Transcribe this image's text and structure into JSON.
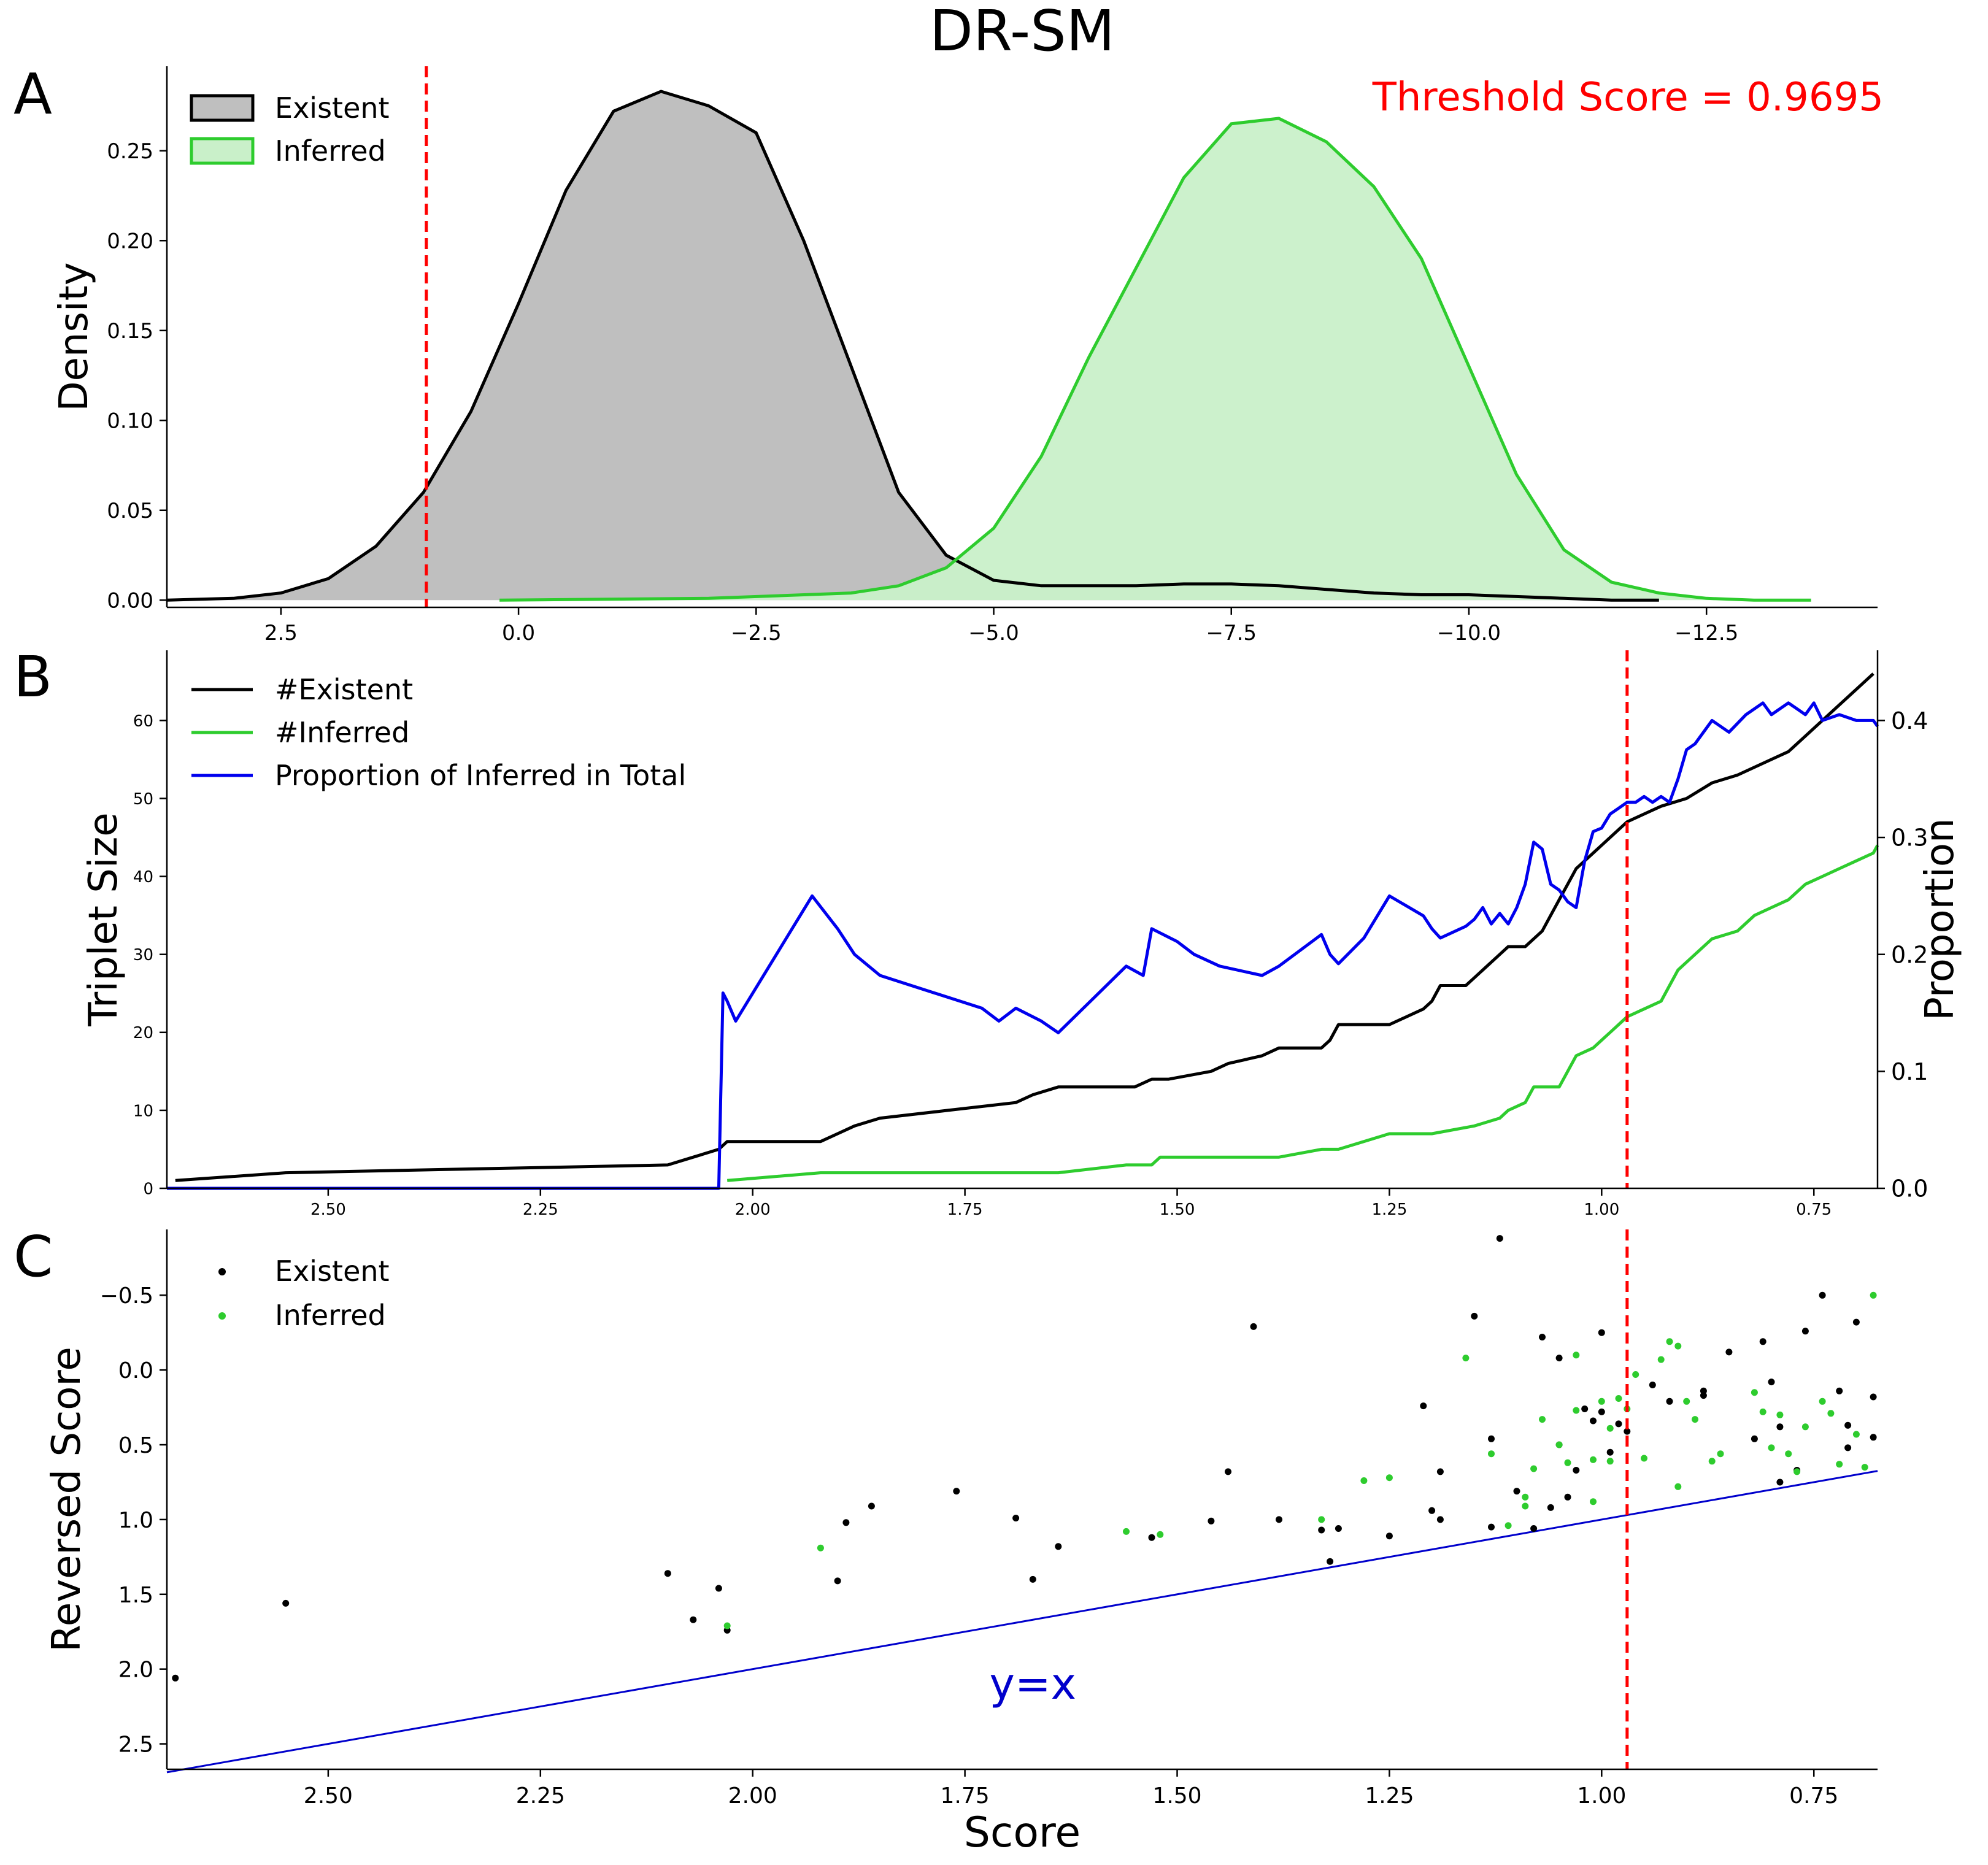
{
  "figure_title": "DR-SM",
  "panel_letters": [
    "A",
    "B",
    "C"
  ],
  "colors": {
    "existent": "#000000",
    "existent_fill": "#bfbfbf",
    "inferred": "#2ecc2e",
    "inferred_fill": "#c9f0c9",
    "proportion": "#0000ee",
    "threshold": "#ff0000",
    "identity": "#0000cc"
  },
  "chart_data": [
    {
      "type": "area",
      "panel": "A",
      "title": "Threshold Score = 0.9695",
      "xlabel": "",
      "ylabel": "Density",
      "xlim": [
        3.7,
        -14.3
      ],
      "ylim": [
        -0.004,
        0.297
      ],
      "x_reversed": true,
      "x_ticks": [
        2.5,
        0.0,
        -2.5,
        -5.0,
        -7.5,
        -10.0,
        -12.5
      ],
      "x_tick_labels": [
        "2.5",
        "0.0",
        "−2.5",
        "−5.0",
        "−7.5",
        "−10.0",
        "−12.5"
      ],
      "y_ticks": [
        0.0,
        0.05,
        0.1,
        0.15,
        0.2,
        0.25
      ],
      "y_tick_labels": [
        "0.00",
        "0.05",
        "0.10",
        "0.15",
        "0.20",
        "0.25"
      ],
      "threshold_x": 0.97,
      "legend": "top-left",
      "grid": false,
      "series": [
        {
          "name": "Existent",
          "x": [
            3.7,
            3.0,
            2.5,
            2.0,
            1.5,
            1.0,
            0.5,
            0.0,
            -0.5,
            -1.0,
            -1.5,
            -2.0,
            -2.5,
            -3.0,
            -3.5,
            -4.0,
            -4.5,
            -5.0,
            -5.5,
            -6.0,
            -6.5,
            -7.0,
            -7.5,
            -8.0,
            -8.5,
            -9.0,
            -9.5,
            -10.0,
            -10.5,
            -11.0,
            -11.5,
            -12.0
          ],
          "y": [
            0.0,
            0.001,
            0.004,
            0.012,
            0.03,
            0.06,
            0.105,
            0.165,
            0.228,
            0.272,
            0.283,
            0.275,
            0.26,
            0.2,
            0.13,
            0.06,
            0.025,
            0.011,
            0.008,
            0.008,
            0.008,
            0.009,
            0.009,
            0.008,
            0.006,
            0.004,
            0.003,
            0.003,
            0.002,
            0.001,
            0.0,
            0.0
          ]
        },
        {
          "name": "Inferred",
          "x": [
            0.2,
            -2.0,
            -3.5,
            -4.0,
            -4.5,
            -5.0,
            -5.5,
            -6.0,
            -6.5,
            -7.0,
            -7.5,
            -8.0,
            -8.5,
            -9.0,
            -9.5,
            -10.0,
            -10.5,
            -11.0,
            -11.5,
            -12.0,
            -12.5,
            -13.0,
            -13.6
          ],
          "y": [
            0.0,
            0.001,
            0.004,
            0.008,
            0.018,
            0.04,
            0.08,
            0.135,
            0.185,
            0.235,
            0.265,
            0.268,
            0.255,
            0.23,
            0.19,
            0.13,
            0.07,
            0.028,
            0.01,
            0.004,
            0.001,
            0.0,
            0.0
          ]
        }
      ]
    },
    {
      "type": "line",
      "panel": "B",
      "xlabel": "",
      "ylabel": "Triplet Size",
      "y2label": "Proportion",
      "xlim": [
        2.69,
        0.675
      ],
      "ylim": [
        0,
        69
      ],
      "y2lim": [
        0,
        0.46
      ],
      "x_reversed": true,
      "x_ticks": [
        2.5,
        2.25,
        2.0,
        1.75,
        1.5,
        1.25,
        1.0,
        0.75
      ],
      "x_tick_labels": [
        "2.50",
        "2.25",
        "2.00",
        "1.75",
        "1.50",
        "1.25",
        "1.00",
        "0.75"
      ],
      "y_ticks": [
        0,
        10,
        20,
        30,
        40,
        50,
        60
      ],
      "y_tick_labels": [
        "0",
        "10",
        "20",
        "30",
        "40",
        "50",
        "60"
      ],
      "y2_ticks": [
        0.0,
        0.1,
        0.2,
        0.3,
        0.4
      ],
      "y2_tick_labels": [
        "0.0",
        "0.1",
        "0.2",
        "0.3",
        "0.4"
      ],
      "threshold_x": 0.97,
      "legend": "top-left",
      "grid": false,
      "series": [
        {
          "name": "#Existent",
          "axis": "left",
          "x": [
            2.68,
            2.55,
            2.1,
            2.07,
            2.04,
            2.03,
            1.92,
            1.9,
            1.88,
            1.85,
            1.77,
            1.69,
            1.67,
            1.64,
            1.55,
            1.53,
            1.51,
            1.46,
            1.44,
            1.4,
            1.38,
            1.33,
            1.32,
            1.31,
            1.25,
            1.21,
            1.2,
            1.19,
            1.16,
            1.15,
            1.14,
            1.13,
            1.12,
            1.11,
            1.09,
            1.07,
            1.06,
            1.05,
            1.04,
            1.03,
            1.02,
            1.01,
            1.0,
            0.99,
            0.98,
            0.97,
            0.95,
            0.93,
            0.9,
            0.87,
            0.84,
            0.8,
            0.78,
            0.76,
            0.74,
            0.72,
            0.7,
            0.68
          ],
          "y": [
            1,
            2,
            3,
            4,
            5,
            6,
            6,
            7,
            8,
            9,
            10,
            11,
            12,
            13,
            13,
            14,
            14,
            15,
            16,
            17,
            18,
            18,
            19,
            21,
            21,
            23,
            24,
            26,
            26,
            27,
            28,
            29,
            30,
            31,
            31,
            33,
            35,
            37,
            39,
            41,
            42,
            43,
            44,
            45,
            46,
            47,
            48,
            49,
            50,
            52,
            53,
            55,
            56,
            58,
            60,
            62,
            64,
            66
          ]
        },
        {
          "name": "#Inferred",
          "axis": "left",
          "x": [
            2.03,
            1.92,
            1.64,
            1.56,
            1.53,
            1.52,
            1.38,
            1.33,
            1.31,
            1.25,
            1.2,
            1.15,
            1.12,
            1.11,
            1.09,
            1.08,
            1.05,
            1.04,
            1.03,
            1.01,
            1.0,
            0.99,
            0.98,
            0.97,
            0.95,
            0.93,
            0.92,
            0.91,
            0.89,
            0.87,
            0.84,
            0.82,
            0.8,
            0.78,
            0.76,
            0.74,
            0.72,
            0.7,
            0.68,
            0.675
          ],
          "y": [
            1,
            2,
            2,
            3,
            3,
            4,
            4,
            5,
            5,
            7,
            7,
            8,
            9,
            10,
            11,
            13,
            13,
            15,
            17,
            18,
            19,
            20,
            21,
            22,
            23,
            24,
            26,
            28,
            30,
            32,
            33,
            35,
            36,
            37,
            39,
            40,
            41,
            42,
            43,
            44
          ]
        },
        {
          "name": "Proportion of Inferred in Total",
          "axis": "right",
          "x": [
            2.69,
            2.04,
            2.035,
            2.03,
            2.02,
            1.93,
            1.9,
            1.88,
            1.85,
            1.73,
            1.71,
            1.69,
            1.66,
            1.64,
            1.56,
            1.54,
            1.53,
            1.5,
            1.48,
            1.45,
            1.4,
            1.38,
            1.33,
            1.32,
            1.31,
            1.28,
            1.25,
            1.21,
            1.2,
            1.19,
            1.16,
            1.15,
            1.14,
            1.13,
            1.12,
            1.11,
            1.1,
            1.09,
            1.08,
            1.07,
            1.06,
            1.05,
            1.04,
            1.03,
            1.02,
            1.01,
            1.0,
            0.99,
            0.98,
            0.97,
            0.96,
            0.95,
            0.94,
            0.93,
            0.92,
            0.91,
            0.9,
            0.89,
            0.87,
            0.85,
            0.83,
            0.81,
            0.8,
            0.79,
            0.78,
            0.77,
            0.76,
            0.75,
            0.74,
            0.72,
            0.7,
            0.68,
            0.675
          ],
          "y": [
            0.0,
            0.0,
            0.167,
            0.16,
            0.143,
            0.25,
            0.222,
            0.2,
            0.182,
            0.154,
            0.143,
            0.154,
            0.143,
            0.133,
            0.19,
            0.182,
            0.222,
            0.211,
            0.2,
            0.19,
            0.182,
            0.19,
            0.217,
            0.2,
            0.192,
            0.214,
            0.25,
            0.233,
            0.222,
            0.214,
            0.224,
            0.23,
            0.24,
            0.226,
            0.235,
            0.226,
            0.24,
            0.26,
            0.296,
            0.29,
            0.26,
            0.255,
            0.245,
            0.24,
            0.28,
            0.305,
            0.308,
            0.32,
            0.325,
            0.33,
            0.33,
            0.335,
            0.33,
            0.335,
            0.33,
            0.35,
            0.375,
            0.38,
            0.4,
            0.39,
            0.405,
            0.415,
            0.405,
            0.41,
            0.415,
            0.41,
            0.405,
            0.415,
            0.4,
            0.405,
            0.4,
            0.4,
            0.395
          ]
        }
      ]
    },
    {
      "type": "scatter",
      "panel": "C",
      "xlabel": "Score",
      "ylabel": "Reversed Score",
      "xlim": [
        2.69,
        0.675
      ],
      "ylim": [
        2.67,
        -0.94
      ],
      "x_reversed": true,
      "y_reversed": true,
      "x_ticks": [
        2.5,
        2.25,
        2.0,
        1.75,
        1.5,
        1.25,
        1.0,
        0.75
      ],
      "x_tick_labels": [
        "2.50",
        "2.25",
        "2.00",
        "1.75",
        "1.50",
        "1.25",
        "1.00",
        "0.75"
      ],
      "y_ticks": [
        -0.5,
        0.0,
        0.5,
        1.0,
        1.5,
        2.0,
        2.5
      ],
      "y_tick_labels": [
        "−0.5",
        "0.0",
        "0.5",
        "1.0",
        "1.5",
        "2.0",
        "2.5"
      ],
      "threshold_x": 0.97,
      "reference_line": {
        "label": "y=x",
        "x": [
          2.69,
          0.675
        ],
        "y": [
          2.69,
          0.675
        ]
      },
      "annotation_label_at": [
        1.67,
        2.1
      ],
      "legend": "top-left",
      "grid": false,
      "series": [
        {
          "name": "Existent",
          "points": [
            [
              2.68,
              2.06
            ],
            [
              2.55,
              1.56
            ],
            [
              2.1,
              1.36
            ],
            [
              2.07,
              1.67
            ],
            [
              2.04,
              1.46
            ],
            [
              2.03,
              1.74
            ],
            [
              1.9,
              1.41
            ],
            [
              1.89,
              1.02
            ],
            [
              1.86,
              0.91
            ],
            [
              1.76,
              0.81
            ],
            [
              1.69,
              0.99
            ],
            [
              1.67,
              1.4
            ],
            [
              1.64,
              1.18
            ],
            [
              1.53,
              1.12
            ],
            [
              1.46,
              1.01
            ],
            [
              1.44,
              0.68
            ],
            [
              1.41,
              -0.29
            ],
            [
              1.38,
              1.0
            ],
            [
              1.33,
              1.07
            ],
            [
              1.32,
              1.28
            ],
            [
              1.31,
              1.06
            ],
            [
              1.25,
              1.11
            ],
            [
              1.21,
              0.24
            ],
            [
              1.2,
              0.94
            ],
            [
              1.19,
              0.68
            ],
            [
              1.19,
              1.0
            ],
            [
              1.15,
              -0.36
            ],
            [
              1.13,
              0.46
            ],
            [
              1.13,
              1.05
            ],
            [
              1.12,
              -0.88
            ],
            [
              1.1,
              0.81
            ],
            [
              1.08,
              1.06
            ],
            [
              1.07,
              -0.22
            ],
            [
              1.06,
              0.92
            ],
            [
              1.05,
              0.5
            ],
            [
              1.05,
              -0.08
            ],
            [
              1.04,
              0.85
            ],
            [
              1.03,
              0.67
            ],
            [
              1.02,
              0.26
            ],
            [
              1.01,
              0.34
            ],
            [
              1.0,
              -0.25
            ],
            [
              1.0,
              0.28
            ],
            [
              0.99,
              0.55
            ],
            [
              0.98,
              0.36
            ],
            [
              0.97,
              0.41
            ],
            [
              0.94,
              0.1
            ],
            [
              0.92,
              0.21
            ],
            [
              0.88,
              0.17
            ],
            [
              0.88,
              0.14
            ],
            [
              0.85,
              -0.12
            ],
            [
              0.82,
              0.46
            ],
            [
              0.81,
              -0.19
            ],
            [
              0.8,
              0.08
            ],
            [
              0.79,
              0.38
            ],
            [
              0.79,
              0.75
            ],
            [
              0.77,
              0.67
            ],
            [
              0.76,
              -0.26
            ],
            [
              0.74,
              -0.5
            ],
            [
              0.72,
              0.14
            ],
            [
              0.71,
              0.52
            ],
            [
              0.71,
              0.37
            ],
            [
              0.7,
              -0.32
            ],
            [
              0.68,
              0.18
            ],
            [
              0.68,
              0.45
            ]
          ]
        },
        {
          "name": "Inferred",
          "points": [
            [
              2.03,
              1.71
            ],
            [
              1.92,
              1.19
            ],
            [
              1.56,
              1.08
            ],
            [
              1.52,
              1.1
            ],
            [
              1.33,
              1.0
            ],
            [
              1.28,
              0.74
            ],
            [
              1.25,
              0.72
            ],
            [
              1.16,
              -0.08
            ],
            [
              1.13,
              0.56
            ],
            [
              1.11,
              1.04
            ],
            [
              1.09,
              0.85
            ],
            [
              1.09,
              0.91
            ],
            [
              1.08,
              0.66
            ],
            [
              1.07,
              0.33
            ],
            [
              1.05,
              0.5
            ],
            [
              1.04,
              0.62
            ],
            [
              1.03,
              0.27
            ],
            [
              1.03,
              -0.1
            ],
            [
              1.01,
              0.88
            ],
            [
              1.01,
              0.6
            ],
            [
              1.0,
              0.21
            ],
            [
              0.99,
              0.61
            ],
            [
              0.99,
              0.39
            ],
            [
              0.98,
              0.19
            ],
            [
              0.97,
              0.26
            ],
            [
              0.96,
              0.03
            ],
            [
              0.95,
              0.59
            ],
            [
              0.93,
              -0.07
            ],
            [
              0.92,
              -0.19
            ],
            [
              0.91,
              -0.16
            ],
            [
              0.91,
              0.78
            ],
            [
              0.9,
              0.21
            ],
            [
              0.89,
              0.33
            ],
            [
              0.87,
              0.61
            ],
            [
              0.86,
              0.56
            ],
            [
              0.82,
              0.15
            ],
            [
              0.81,
              0.28
            ],
            [
              0.8,
              0.52
            ],
            [
              0.79,
              0.3
            ],
            [
              0.78,
              0.56
            ],
            [
              0.77,
              0.68
            ],
            [
              0.76,
              0.38
            ],
            [
              0.74,
              0.21
            ],
            [
              0.73,
              0.29
            ],
            [
              0.72,
              0.63
            ],
            [
              0.7,
              0.43
            ],
            [
              0.69,
              0.65
            ],
            [
              0.68,
              -0.5
            ]
          ]
        }
      ]
    }
  ]
}
